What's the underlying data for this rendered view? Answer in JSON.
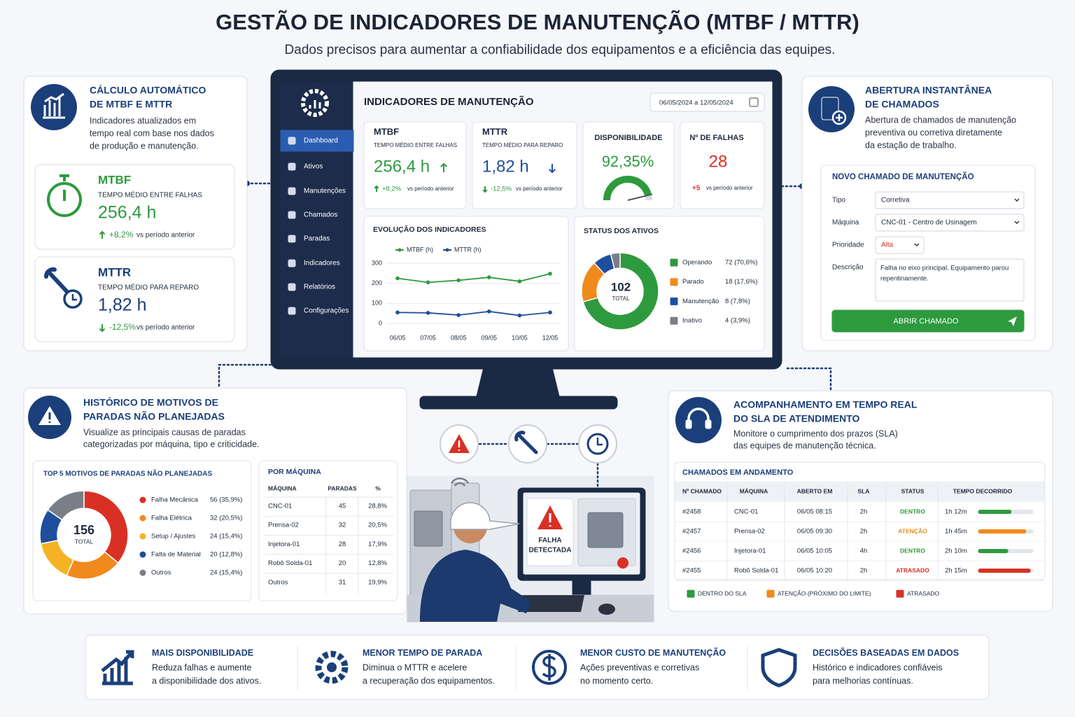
{
  "header": {
    "title": "GESTÃO DE INDICADORES DE MANUTENÇÃO (MTBF / MTTR)",
    "subtitle": "Dados precisos para aumentar a confiabilidade dos equipamentos e a eficiência das equipes."
  },
  "calc_panel": {
    "title_lines": [
      "CÁLCULO AUTOMÁTICO",
      "DE MTBF E MTTR"
    ],
    "text_lines": [
      "Indicadores atualizados em",
      "tempo real com base nos dados",
      "de produção e manutenção."
    ],
    "cards": [
      {
        "name": "MTBF",
        "desc": "TEMPO MÉDIO ENTRE FALHAS",
        "value": "256,4 h",
        "change": "+8,2%",
        "change_note": "vs período anterior"
      },
      {
        "name": "MTTR",
        "desc": "TEMPO MÉDIO PARA REPARO",
        "value": "1,82 h",
        "change": "-12,5%",
        "change_note": "vs período anterior"
      }
    ]
  },
  "dashboard": {
    "sidebar": [
      "Dashboard",
      "Ativos",
      "Manutenções",
      "Chamados",
      "Paradas",
      "Indicadores",
      "Relatórios",
      "Configurações"
    ],
    "title": "INDICADORES DE MANUTENÇÃO",
    "date_range": "06/05/2024 a 12/05/2024",
    "kpis": [
      {
        "name": "MTBF",
        "desc": "TEMPO MÉDIO ENTRE FALHAS",
        "value": "256,4 h",
        "change": "+8,2%",
        "change_note": "vs período anterior"
      },
      {
        "name": "MTTR",
        "desc": "TEMPO MÉDIO PARA REPARO",
        "value": "1,82 h",
        "change": "-12,5%",
        "change_note": "vs período anterior"
      },
      {
        "name": "DISPONIBILIDADE"
      },
      {
        "name": "Nº DE FALHAS",
        "value": "28",
        "change": "+5",
        "change_note": "vs período anterior"
      }
    ],
    "availability": {
      "type": "gauge",
      "value": 92.35,
      "value_label": "92,35%",
      "ylim": [
        0,
        100
      ],
      "color": "#2e9a3e"
    },
    "evolution": {
      "type": "line",
      "title": "EVOLUÇÃO DOS INDICADORES",
      "categories": [
        "06/05",
        "07/05",
        "08/05",
        "09/05",
        "10/05",
        "12/05"
      ],
      "series": [
        {
          "name": "MTBF (h)",
          "color": "#2e9a3e",
          "values": [
            225,
            205,
            215,
            230,
            210,
            248
          ]
        },
        {
          "name": "MTTR (h)",
          "color": "#1f4e9c",
          "values": [
            55,
            53,
            42,
            60,
            40,
            55
          ]
        }
      ],
      "ylim": [
        0,
        300
      ],
      "yticks": [
        0,
        100,
        200,
        300
      ],
      "grid": true
    },
    "status": {
      "type": "donut",
      "title": "STATUS DOS ATIVOS",
      "total": 102,
      "total_label": "TOTAL",
      "categories": [
        "Operando",
        "Parado",
        "Manutenção",
        "Inativo"
      ],
      "values": [
        72,
        18,
        8,
        4
      ],
      "value_labels": [
        "72 (70,6%)",
        "18 (17,6%)",
        "8 (7,8%)",
        "4 (3,9%)"
      ],
      "colors": [
        "#2e9a3e",
        "#f08a1c",
        "#1f4e9c",
        "#7a7f87"
      ]
    }
  },
  "tickets_panel": {
    "title_lines": [
      "ABERTURA INSTANTÂNEA",
      "DE CHAMADOS"
    ],
    "text_lines": [
      "Abertura de chamados de manutenção",
      "preventiva ou corretiva diretamente",
      "da estação de trabalho."
    ],
    "form": {
      "title": "NOVO CHAMADO DE MANUTENÇÃO",
      "fields": [
        {
          "label": "Tipo",
          "value": "Corretiva"
        },
        {
          "label": "Máquina",
          "value": "CNC-01 - Centro de Usinagem"
        },
        {
          "label": "Prioridade",
          "value": "Alta"
        },
        {
          "label": "Descrição",
          "value_lines": [
            "Falha no eixo principal. Equipamento parou",
            "repentinamente."
          ]
        }
      ],
      "button": "ABRIR CHAMADO"
    }
  },
  "history_panel": {
    "title_lines": [
      "HISTÓRICO DE MOTIVOS DE",
      "PARADAS NÃO PLANEJADAS"
    ],
    "text_lines": [
      "Visualize as principais causas de paradas",
      "categorizadas por máquina, tipo e criticidade."
    ],
    "top5": {
      "type": "donut",
      "title": "TOP 5 MOTIVOS DE PARADAS NÃO PLANEJADAS",
      "total": 156,
      "total_label": "TOTAL",
      "categories": [
        "Falha Mecânica",
        "Falha Elétrica",
        "Setup / Ajustes",
        "Falta de Material",
        "Outros"
      ],
      "values": [
        56,
        32,
        24,
        20,
        24
      ],
      "value_labels": [
        "56 (35,9%)",
        "32 (20,5%)",
        "24 (15,4%)",
        "20 (12,8%)",
        "24 (15,4%)"
      ],
      "colors": [
        "#d93025",
        "#f08a1c",
        "#f5b324",
        "#1f4e9c",
        "#7a7f87"
      ]
    },
    "machine_table": {
      "title": "POR MÁQUINA",
      "columns": [
        "MÁQUINA",
        "PARADAS",
        "%"
      ],
      "rows": [
        [
          "CNC-01",
          "45",
          "28,8%"
        ],
        [
          "Prensa-02",
          "32",
          "20,5%"
        ],
        [
          "Injetora-01",
          "28",
          "17,9%"
        ],
        [
          "Robô Solda-01",
          "20",
          "12,8%"
        ],
        [
          "Outros",
          "31",
          "19,9%"
        ]
      ]
    }
  },
  "illustration": {
    "alert_lines": [
      "FALHA",
      "DETECTADA"
    ]
  },
  "sla_panel": {
    "title_lines": [
      "ACOMPANHAMENTO EM TEMPO REAL",
      "DO SLA DE ATENDIMENTO"
    ],
    "text_lines": [
      "Monitore o cumprimento dos prazos (SLA)",
      "das equipes de manutenção técnica."
    ],
    "table": {
      "title": "CHAMADOS EM ANDAMENTO",
      "columns": [
        "Nº CHAMADO",
        "MÁQUINA",
        "ABERTO EM",
        "SLA",
        "STATUS",
        "TEMPO DECORRIDO"
      ],
      "progress_lim": [
        0,
        100
      ],
      "rows": [
        {
          "id": "#2458",
          "machine": "CNC-01",
          "opened": "06/05 08:15",
          "sla": "2h",
          "status": "DENTRO",
          "elapsed": "1h 12m",
          "progress": 60,
          "color": "#2e9a3e"
        },
        {
          "id": "#2457",
          "machine": "Prensa-02",
          "opened": "06/05 09:30",
          "sla": "2h",
          "status": "ATENÇÃO",
          "elapsed": "1h 45m",
          "progress": 87,
          "color": "#f08a1c"
        },
        {
          "id": "#2456",
          "machine": "Injetora-01",
          "opened": "06/05 10:05",
          "sla": "4h",
          "status": "DENTRO",
          "elapsed": "2h 10m",
          "progress": 54,
          "color": "#2e9a3e"
        },
        {
          "id": "#2455",
          "machine": "Robô Solda-01",
          "opened": "06/05 10:20",
          "sla": "2h",
          "status": "ATRASADO",
          "elapsed": "2h 15m",
          "progress": 95,
          "color": "#d93025"
        }
      ]
    },
    "legend": [
      {
        "label": "DENTRO DO SLA",
        "color": "#2e9a3e"
      },
      {
        "label": "ATENÇÃO (PRÓXIMO DO LIMITE)",
        "color": "#f08a1c"
      },
      {
        "label": "ATRASADO",
        "color": "#d93025"
      }
    ]
  },
  "benefits": [
    {
      "title": "MAIS DISPONIBILIDADE",
      "lines": [
        "Reduza falhas e aumente",
        "a disponibilidade dos ativos."
      ]
    },
    {
      "title": "MENOR TEMPO DE PARADA",
      "lines": [
        "Diminua o MTTR e acelere",
        "a recuperação dos equipamentos."
      ]
    },
    {
      "title": "MENOR CUSTO DE MANUTENÇÃO",
      "lines": [
        "Ações preventivas e corretivas",
        "no momento certo."
      ]
    },
    {
      "title": "DECISÕES BASEADAS EM DADOS",
      "lines": [
        "Histórico e indicadores confiáveis",
        "para melhorias contínuas."
      ]
    }
  ]
}
